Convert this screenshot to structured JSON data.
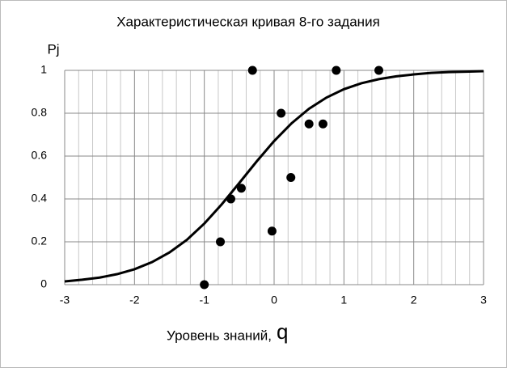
{
  "chart_data": {
    "type": "scatter_curve",
    "title": "Характеристическая кривая 8-го задания",
    "ylabel": "Pj",
    "xlabel": {
      "text": "Уровень знаний,",
      "symbol": "q"
    },
    "xlim": [
      -3,
      3
    ],
    "ylim": [
      0,
      1
    ],
    "xticks": [
      -3,
      -2,
      -1,
      0,
      1,
      2,
      3
    ],
    "yticks": [
      0,
      0.2,
      0.4,
      0.6,
      0.8,
      1
    ],
    "x_minor_grid": [
      -2.8,
      -2.6,
      -2.4,
      -2.2,
      -1.8,
      -1.6,
      -1.4,
      -1.2,
      -0.8,
      -0.6,
      -0.4,
      -0.2,
      0.2,
      0.4,
      0.6,
      0.8,
      1.2,
      1.4,
      1.6,
      1.8,
      2.2,
      2.4,
      2.6,
      2.8
    ],
    "grid": true,
    "series": [
      {
        "kind": "points",
        "color": "#000000",
        "x": [
          -1.0,
          -0.77,
          -0.62,
          -0.47,
          -0.31,
          -0.03,
          0.1,
          0.24,
          0.5,
          0.7,
          0.89,
          1.5
        ],
        "values": [
          0,
          0.2,
          0.4,
          0.45,
          1,
          0.25,
          0.8,
          0.5,
          0.75,
          0.75,
          1,
          1
        ]
      },
      {
        "kind": "curve",
        "color": "#000000",
        "x": [
          -3,
          -2.75,
          -2.5,
          -2.25,
          -2,
          -1.75,
          -1.5,
          -1.25,
          -1,
          -0.75,
          -0.5,
          -0.25,
          0,
          0.25,
          0.5,
          0.75,
          1,
          1.25,
          1.5,
          1.75,
          2,
          2.25,
          2.5,
          2.75,
          3
        ],
        "values": [
          0.015,
          0.023,
          0.033,
          0.049,
          0.072,
          0.105,
          0.15,
          0.209,
          0.285,
          0.375,
          0.474,
          0.575,
          0.67,
          0.753,
          0.821,
          0.873,
          0.912,
          0.94,
          0.959,
          0.972,
          0.981,
          0.988,
          0.992,
          0.994,
          0.996
        ]
      }
    ]
  }
}
